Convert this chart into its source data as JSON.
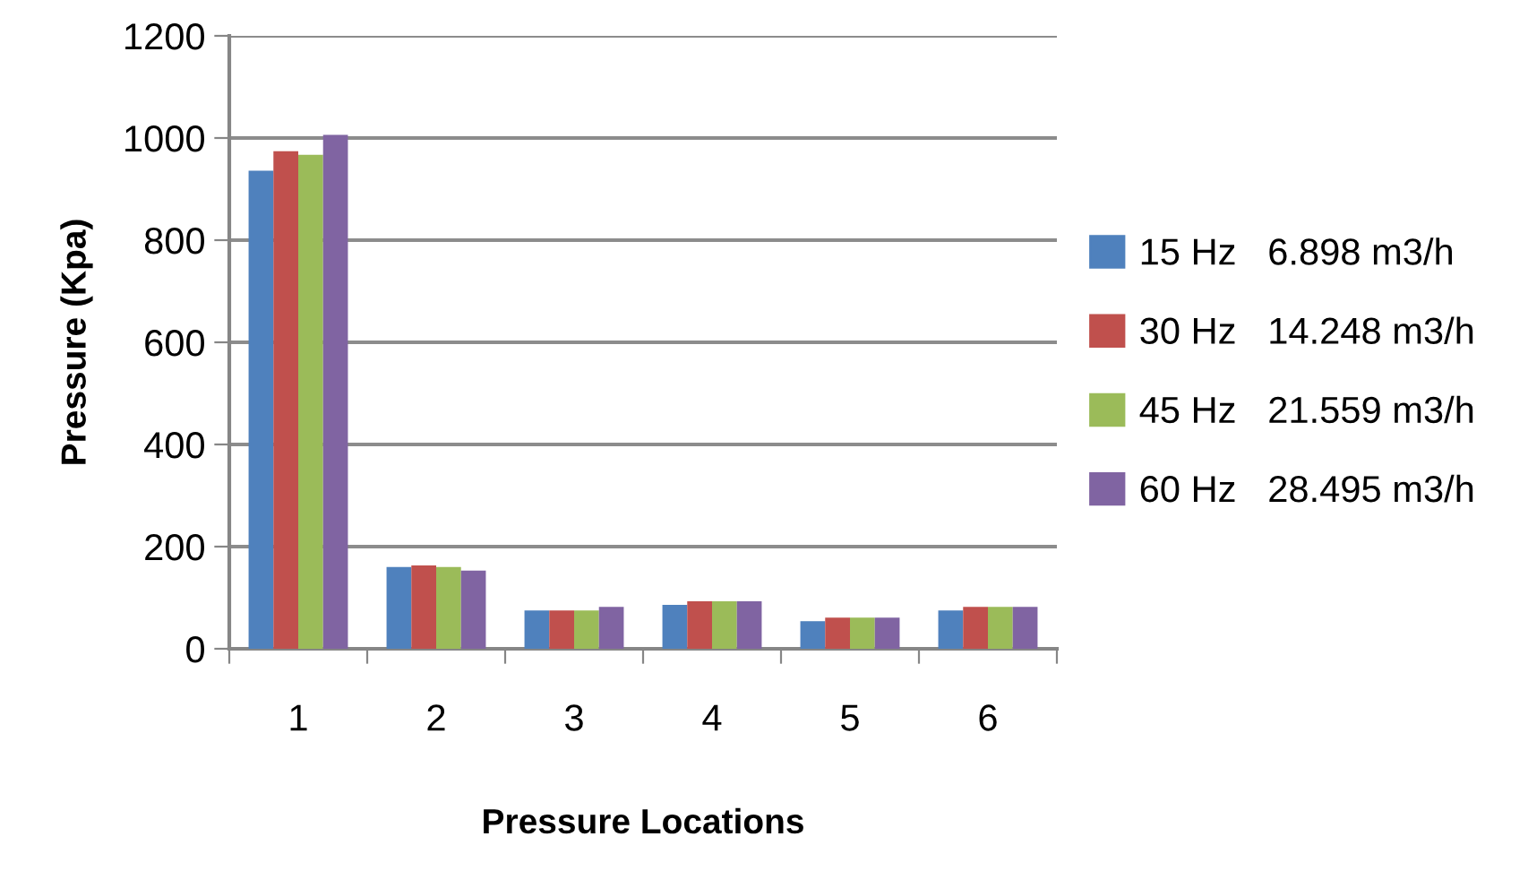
{
  "chart_data": {
    "type": "bar",
    "xlabel": "Pressure Locations",
    "ylabel": "Pressure (Kpa)",
    "categories": [
      "1",
      "2",
      "3",
      "4",
      "5",
      "6"
    ],
    "series": [
      {
        "name": "15 Hz   6.898 m3/h",
        "color": "#4f81bd",
        "values": [
          936,
          160,
          75,
          86,
          54,
          75
        ]
      },
      {
        "name": "30 Hz   14.248 m3/h",
        "color": "#c0504d",
        "values": [
          974,
          163,
          75,
          93,
          61,
          82
        ]
      },
      {
        "name": "45 Hz   21.559 m3/h",
        "color": "#9bbb59",
        "values": [
          967,
          160,
          75,
          93,
          61,
          82
        ]
      },
      {
        "name": "60 Hz   28.495 m3/h",
        "color": "#8064a2",
        "values": [
          1006,
          153,
          82,
          93,
          61,
          82
        ]
      }
    ],
    "ylim": [
      0,
      1200
    ],
    "yticks": [
      0,
      200,
      400,
      600,
      800,
      1000,
      1200
    ],
    "grid": "y",
    "legend": "right"
  }
}
